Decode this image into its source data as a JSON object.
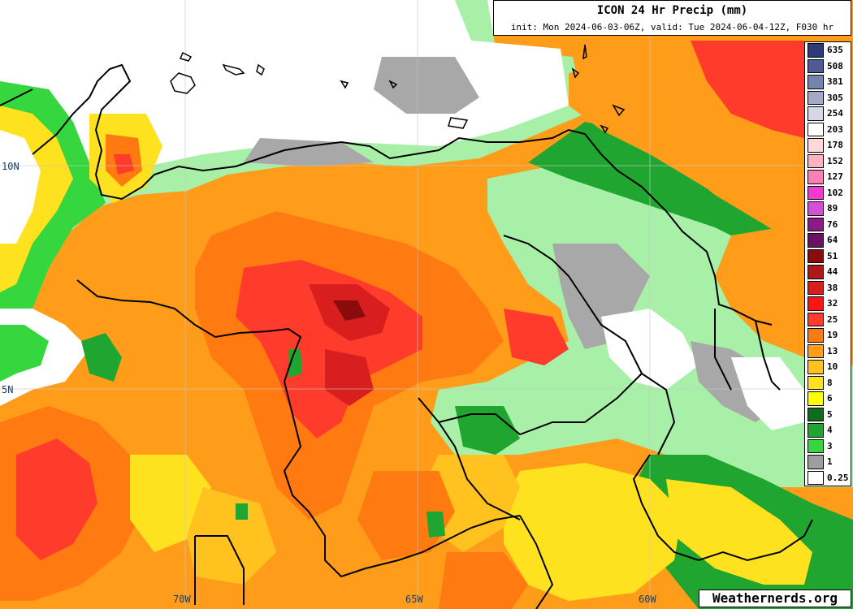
{
  "header": {
    "title": "ICON 24 Hr Precip (mm)",
    "subtitle": "init: Mon 2024-06-03-06Z, valid: Tue 2024-06-04-12Z, F030 hr"
  },
  "legend": {
    "items": [
      {
        "label": "635",
        "color": "#2d3c78"
      },
      {
        "label": "508",
        "color": "#4c5b91"
      },
      {
        "label": "381",
        "color": "#7683ad"
      },
      {
        "label": "305",
        "color": "#a3a9c7"
      },
      {
        "label": "254",
        "color": "#d6d8e6"
      },
      {
        "label": "203",
        "color": "#ffffff"
      },
      {
        "label": "178",
        "color": "#ffd8d8"
      },
      {
        "label": "152",
        "color": "#ffb1c2"
      },
      {
        "label": "127",
        "color": "#ff7eb3"
      },
      {
        "label": "102",
        "color": "#f13bd0"
      },
      {
        "label": "89",
        "color": "#d24fd6"
      },
      {
        "label": "76",
        "color": "#8e1a86"
      },
      {
        "label": "64",
        "color": "#6b1264"
      },
      {
        "label": "51",
        "color": "#8a0b0b"
      },
      {
        "label": "44",
        "color": "#b01818"
      },
      {
        "label": "38",
        "color": "#d81e1e"
      },
      {
        "label": "32",
        "color": "#ff1414"
      },
      {
        "label": "25",
        "color": "#ff3c2c"
      },
      {
        "label": "19",
        "color": "#ff7a10"
      },
      {
        "label": "13",
        "color": "#ff9d1a"
      },
      {
        "label": "10",
        "color": "#ffc21f"
      },
      {
        "label": "8",
        "color": "#ffe21f"
      },
      {
        "label": "6",
        "color": "#ffff00"
      },
      {
        "label": "5",
        "color": "#0f6e1e"
      },
      {
        "label": "4",
        "color": "#20a531"
      },
      {
        "label": "3",
        "color": "#36d63e"
      },
      {
        "label": "1",
        "color": "#9e9e9e"
      },
      {
        "label": "0.25",
        "color": "#ffffff"
      }
    ]
  },
  "axes": {
    "lat_labels": [
      "10N",
      "5N"
    ],
    "lon_labels": [
      "70W",
      "65W",
      "60W"
    ]
  },
  "brand": "Weathernerds.org"
}
